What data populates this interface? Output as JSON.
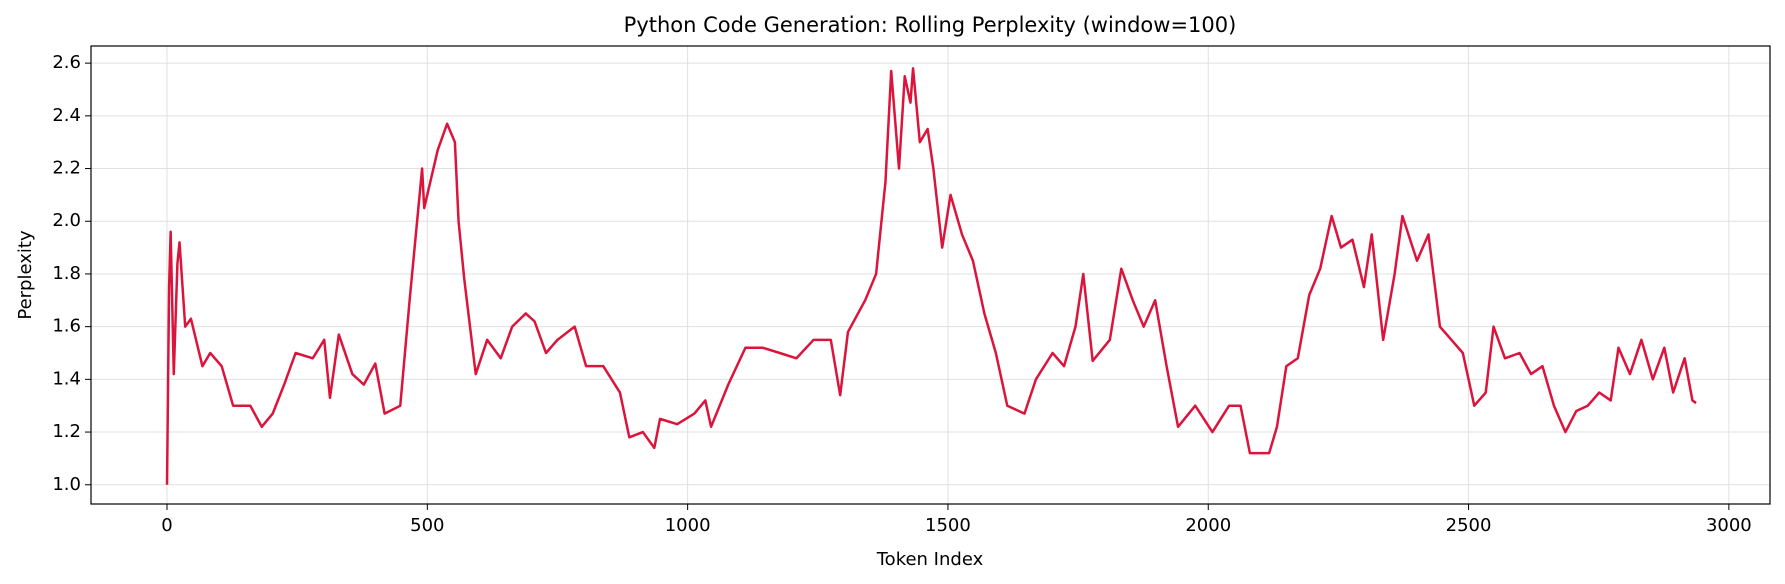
{
  "chart_data": {
    "type": "line",
    "title": "Python Code Generation: Rolling Perplexity (window=100)",
    "xlabel": "Token Index",
    "ylabel": "Perplexity",
    "grid": true,
    "xlim": [
      -146,
      3079
    ],
    "ylim": [
      0.927,
      2.665
    ],
    "xticks": [
      0,
      500,
      1000,
      1500,
      2000,
      2500,
      3000
    ],
    "yticks": [
      {
        "value": 1.0,
        "label": "1.0"
      },
      {
        "value": 1.2,
        "label": "1.2"
      },
      {
        "value": 1.4,
        "label": "1.4"
      },
      {
        "value": 1.6,
        "label": "1.6"
      },
      {
        "value": 1.8,
        "label": "1.8"
      },
      {
        "value": 2.0,
        "label": "2.0"
      },
      {
        "value": 2.2,
        "label": "2.2"
      },
      {
        "value": 2.4,
        "label": "2.4"
      },
      {
        "value": 2.6,
        "label": "2.6"
      }
    ],
    "x": [
      0,
      4,
      7,
      13,
      20,
      24,
      35,
      46,
      68,
      83,
      105,
      127,
      160,
      182,
      203,
      225,
      247,
      280,
      302,
      313,
      330,
      356,
      378,
      400,
      418,
      448,
      466,
      490,
      494,
      520,
      538,
      553,
      560,
      571,
      582,
      593,
      615,
      641,
      663,
      689,
      706,
      728,
      750,
      783,
      805,
      838,
      870,
      888,
      914,
      936,
      947,
      980,
      1013,
      1034,
      1045,
      1078,
      1111,
      1144,
      1177,
      1209,
      1242,
      1275,
      1293,
      1308,
      1341,
      1362,
      1380,
      1391,
      1406,
      1417,
      1428,
      1433,
      1446,
      1461,
      1472,
      1489,
      1505,
      1527,
      1548,
      1570,
      1592,
      1614,
      1647,
      1669,
      1701,
      1723,
      1745,
      1760,
      1778,
      1811,
      1833,
      1855,
      1876,
      1898,
      1920,
      1942,
      1975,
      2008,
      2040,
      2062,
      2080,
      2117,
      2132,
      2150,
      2172,
      2194,
      2215,
      2237,
      2255,
      2277,
      2299,
      2314,
      2336,
      2358,
      2373,
      2401,
      2423,
      2445,
      2467,
      2489,
      2511,
      2533,
      2548,
      2570,
      2598,
      2620,
      2642,
      2664,
      2686,
      2707,
      2729,
      2751,
      2773,
      2788,
      2810,
      2832,
      2854,
      2876,
      2893,
      2915,
      2930,
      2937
    ],
    "series": [
      {
        "name": "Rolling Perplexity",
        "color": "#dc143c",
        "values": [
          1.0,
          1.75,
          1.96,
          1.42,
          1.84,
          1.92,
          1.6,
          1.63,
          1.45,
          1.5,
          1.45,
          1.3,
          1.3,
          1.22,
          1.27,
          1.38,
          1.5,
          1.48,
          1.55,
          1.33,
          1.57,
          1.42,
          1.38,
          1.46,
          1.27,
          1.3,
          1.7,
          2.2,
          2.05,
          2.27,
          2.37,
          2.3,
          2.0,
          1.78,
          1.6,
          1.42,
          1.55,
          1.48,
          1.6,
          1.65,
          1.62,
          1.5,
          1.55,
          1.6,
          1.45,
          1.45,
          1.35,
          1.18,
          1.2,
          1.14,
          1.25,
          1.23,
          1.27,
          1.32,
          1.22,
          1.38,
          1.52,
          1.52,
          1.5,
          1.48,
          1.55,
          1.55,
          1.34,
          1.58,
          1.7,
          1.8,
          2.15,
          2.57,
          2.2,
          2.55,
          2.45,
          2.58,
          2.3,
          2.35,
          2.2,
          1.9,
          2.1,
          1.95,
          1.85,
          1.65,
          1.5,
          1.3,
          1.27,
          1.4,
          1.5,
          1.45,
          1.6,
          1.8,
          1.47,
          1.55,
          1.82,
          1.7,
          1.6,
          1.7,
          1.45,
          1.22,
          1.3,
          1.2,
          1.3,
          1.3,
          1.12,
          1.12,
          1.22,
          1.45,
          1.48,
          1.72,
          1.82,
          2.02,
          1.9,
          1.93,
          1.75,
          1.95,
          1.55,
          1.8,
          2.02,
          1.85,
          1.95,
          1.6,
          1.55,
          1.5,
          1.3,
          1.35,
          1.6,
          1.48,
          1.5,
          1.42,
          1.45,
          1.3,
          1.2,
          1.28,
          1.3,
          1.35,
          1.32,
          1.52,
          1.42,
          1.55,
          1.4,
          1.52,
          1.35,
          1.48,
          1.32,
          1.31
        ]
      }
    ]
  }
}
